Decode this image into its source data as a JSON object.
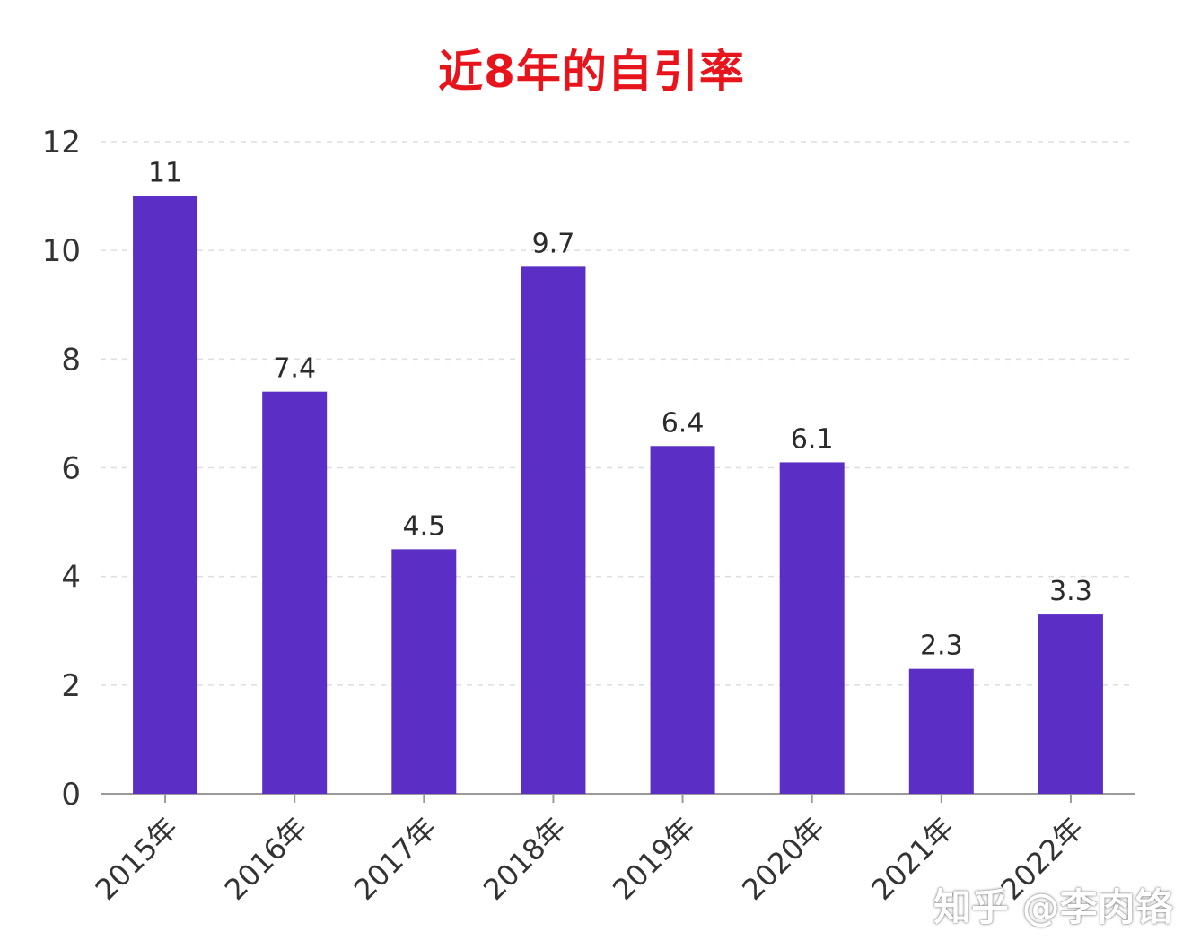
{
  "chart_data": {
    "type": "bar",
    "title": "近8年的自引率",
    "categories": [
      "2015年",
      "2016年",
      "2017年",
      "2018年",
      "2019年",
      "2020年",
      "2021年",
      "2022年"
    ],
    "values": [
      11,
      7.4,
      4.5,
      9.7,
      6.4,
      6.1,
      2.3,
      3.3
    ],
    "value_labels": [
      "11",
      "7.4",
      "4.5",
      "9.7",
      "6.4",
      "6.1",
      "2.3",
      "3.3"
    ],
    "yticks": [
      0,
      2,
      4,
      6,
      8,
      10,
      12
    ],
    "ylim": [
      0,
      12
    ],
    "xlabel": "",
    "ylabel": "",
    "grid": true,
    "bar_color": "#5b2fc6",
    "title_color": "#e8141c"
  },
  "watermark": "知乎 @李肉铬"
}
